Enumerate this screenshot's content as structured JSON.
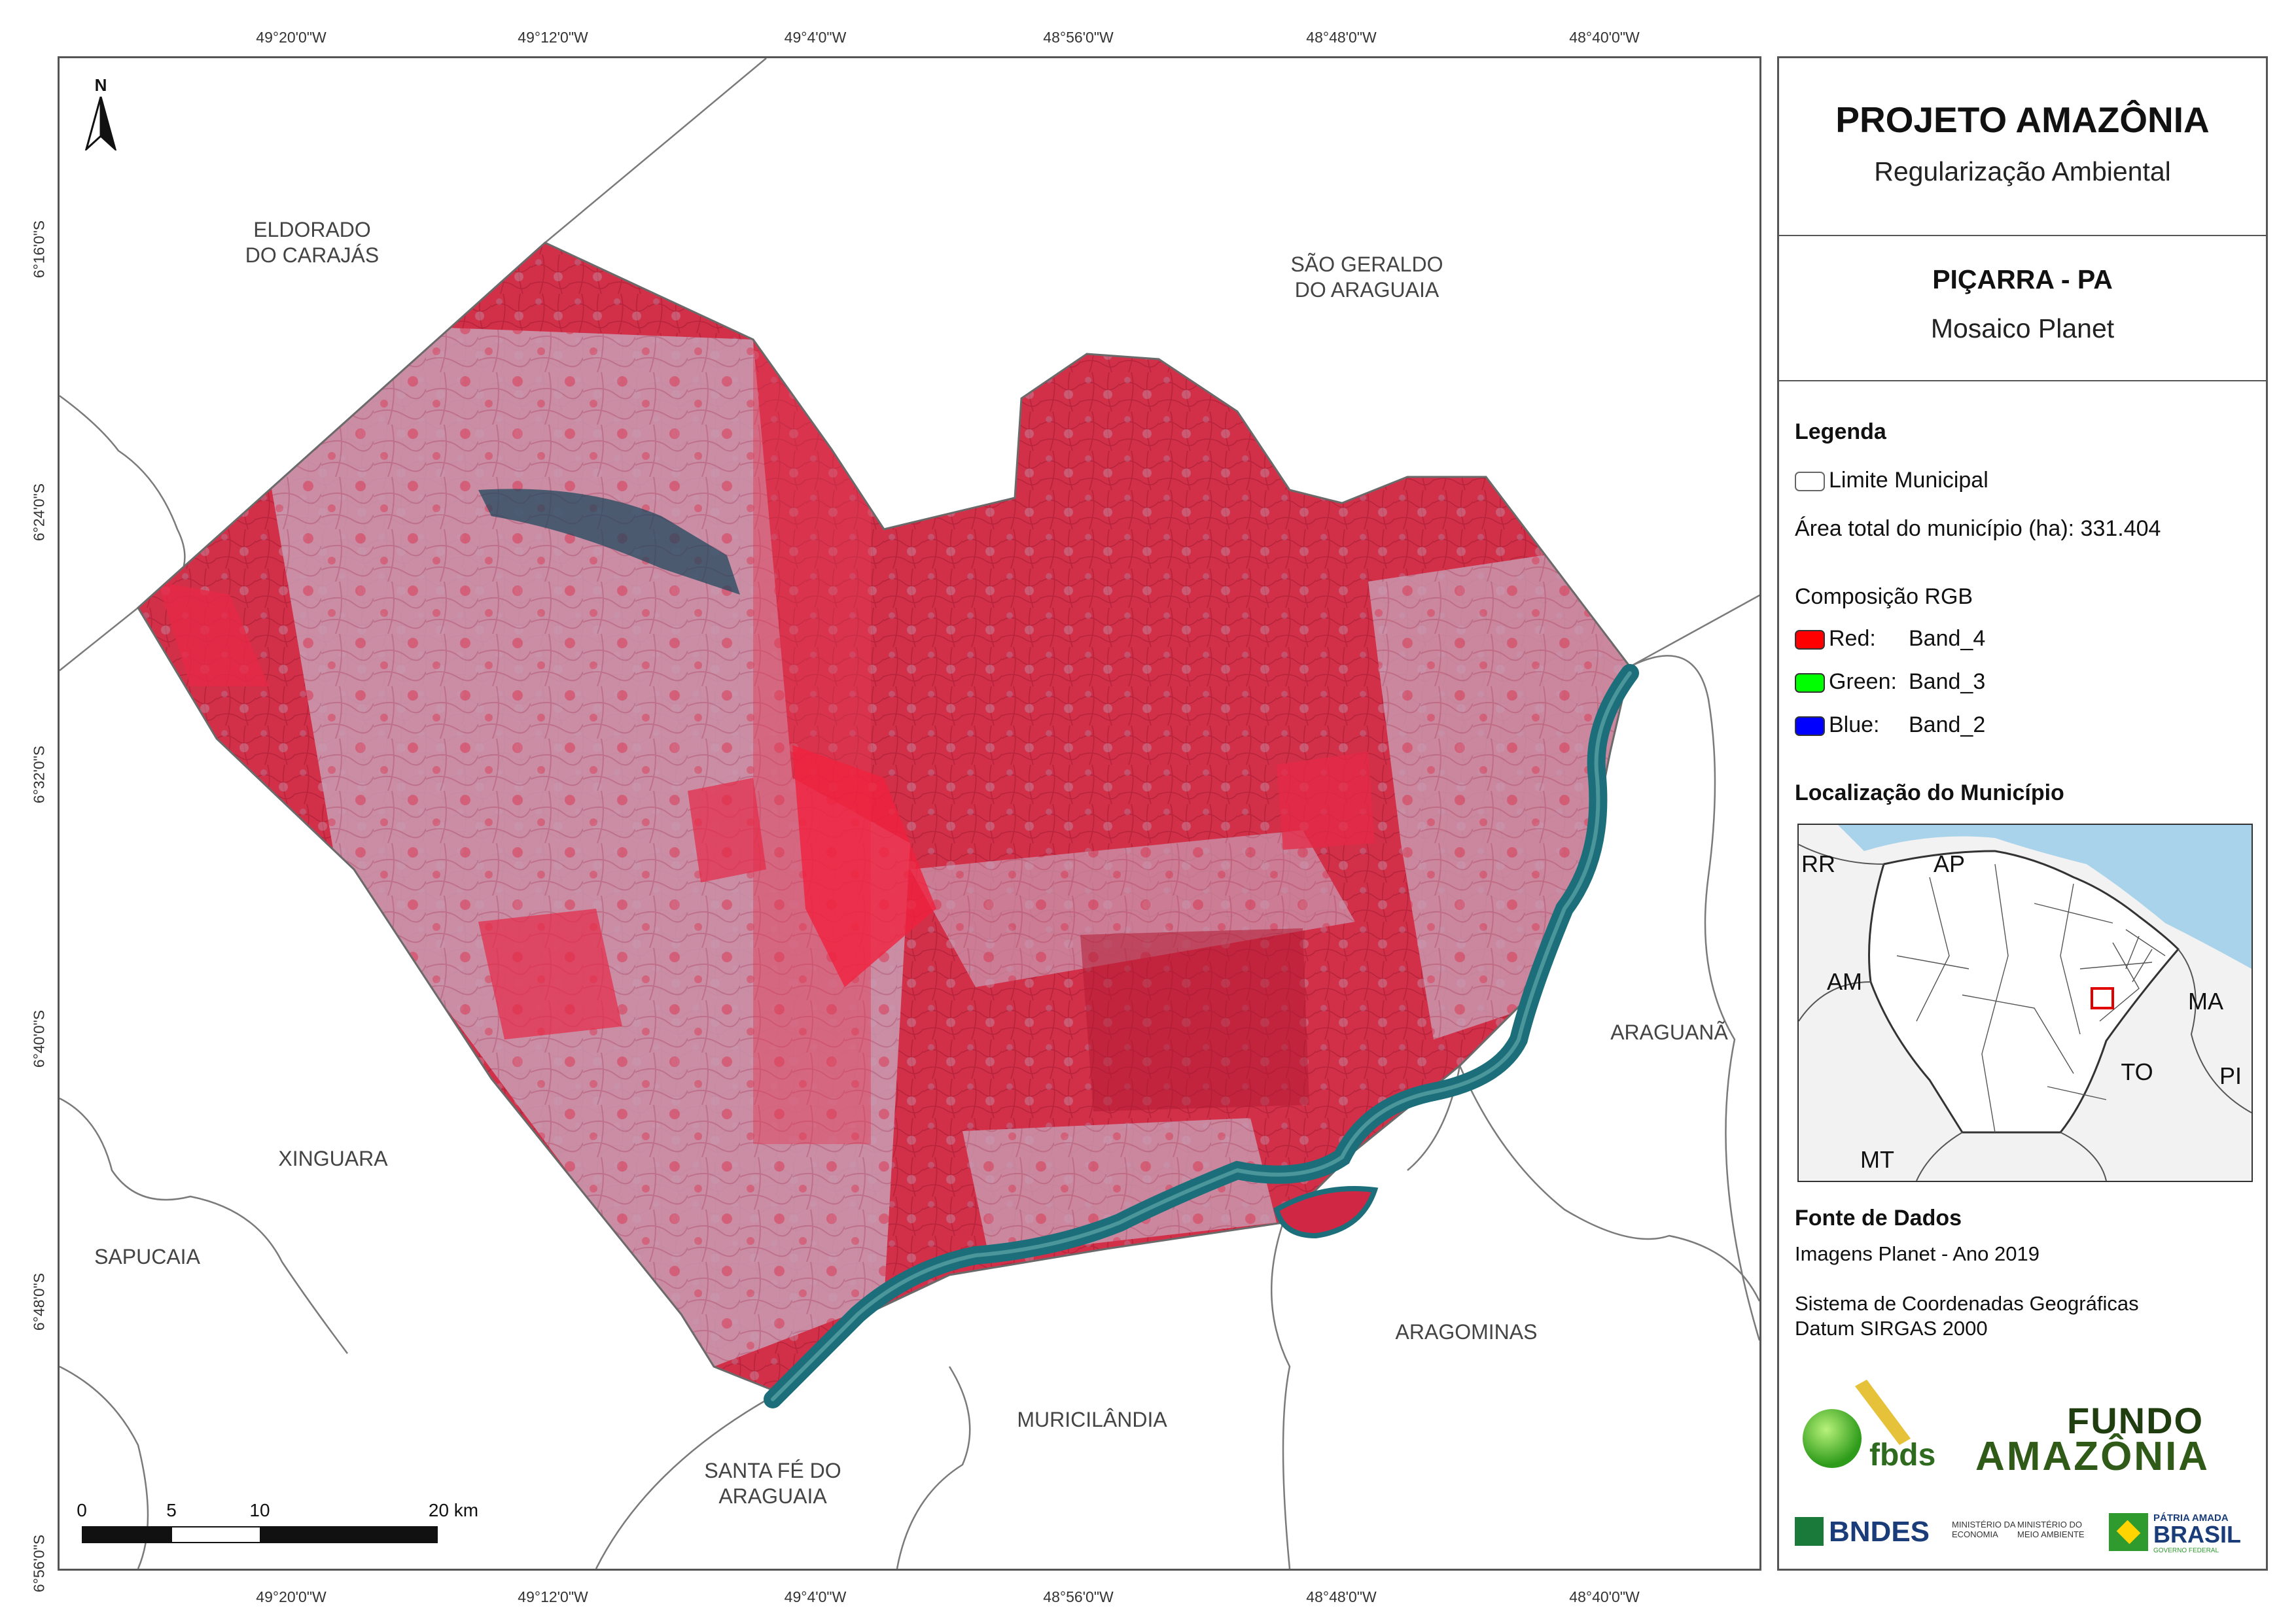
{
  "coordinates": {
    "top": [
      "49°20'0\"W",
      "49°12'0\"W",
      "49°4'0\"W",
      "48°56'0\"W",
      "48°48'0\"W",
      "48°40'0\"W"
    ],
    "bottom": [
      "49°20'0\"W",
      "49°12'0\"W",
      "49°4'0\"W",
      "48°56'0\"W",
      "48°48'0\"W",
      "48°40'0\"W"
    ],
    "left": [
      "6°16'0\"S",
      "6°24'0\"S",
      "6°32'0\"S",
      "6°40'0\"S",
      "6°48'0\"S",
      "6°56'0\"S"
    ]
  },
  "map": {
    "north_label": "N",
    "municipalities": {
      "eldorado": [
        "ELDORADO",
        "DO CARAJÁS"
      ],
      "sao_geraldo": [
        "SÃO GERALDO",
        "DO ARAGUAIA"
      ],
      "araguana": "ARAGUANÃ",
      "xinguara": "XINGUARA",
      "sapucaia": "SAPUCAIA",
      "aragominas": "ARAGOMINAS",
      "muricilandia": "MURICILÂNDIA",
      "santa_fe": [
        "SANTA FÉ DO",
        "ARAGUAIA"
      ]
    },
    "scalebar": [
      "0",
      "5",
      "10",
      "20 km"
    ],
    "colors": {
      "vegetation": "#d8283f",
      "pasture": "#c9a6b8",
      "river": "#1c6f7a",
      "limit": "#6a6a6a"
    }
  },
  "panel": {
    "title": "PROJETO AMAZÔNIA",
    "subtitle": "Regularização Ambiental",
    "municipality": "PIÇARRA - PA",
    "mosaic": "Mosaico Planet",
    "legend_title": "Legenda",
    "legend_limit": "Limite Municipal",
    "area_text": "Área total do município (ha): 331.404",
    "rgb_title": "Composição RGB",
    "bands": [
      {
        "label": "Red:",
        "band": "Band_4",
        "color": "#ff0000"
      },
      {
        "label": "Green:",
        "band": "Band_3",
        "color": "#00ff00"
      },
      {
        "label": "Blue:",
        "band": "Band_2",
        "color": "#0000ff"
      }
    ],
    "location_title": "Localização do Município",
    "states": [
      "RR",
      "AP",
      "AM",
      "MA",
      "TO",
      "PI",
      "MT"
    ],
    "sources_title": "Fonte de Dados",
    "sources_1": "Imagens Planet - Ano 2019",
    "sources_2": "Sistema de Coordenadas Geográficas",
    "sources_3": "Datum SIRGAS 2000",
    "logos": {
      "fbds": "fbds",
      "fundo_1": "FUNDO",
      "fundo_2": "AMAZÔNIA",
      "bndes": "BNDES",
      "min_economia": [
        "MINISTÉRIO DA",
        "ECONOMIA"
      ],
      "min_meio": [
        "MINISTÉRIO DO",
        "MEIO AMBIENTE"
      ],
      "patria": [
        "PÁTRIA AMADA",
        "BRASIL",
        "GOVERNO FEDERAL"
      ]
    }
  }
}
